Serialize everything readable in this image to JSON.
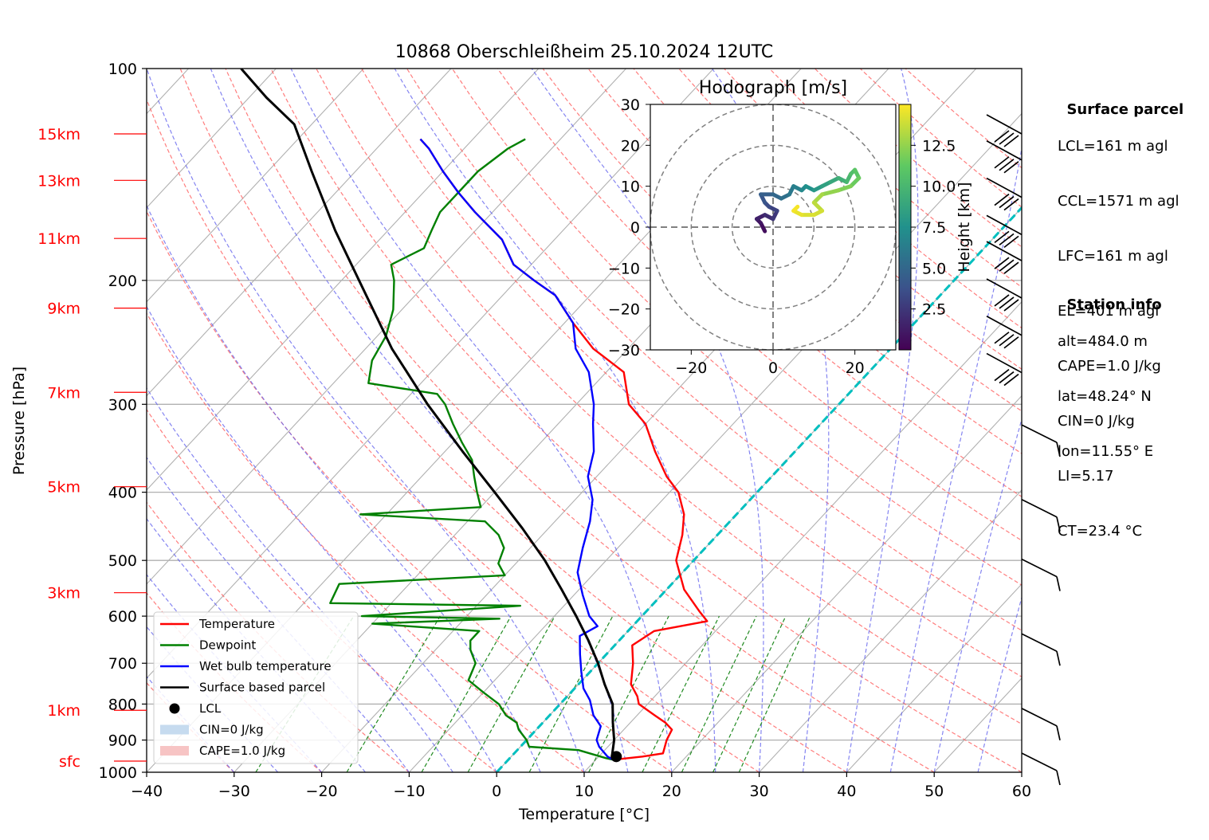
{
  "chart_data": {
    "type": "line",
    "title": "10868 Oberschleißheim 25.10.2024 12UTC",
    "xlabel": "Temperature [°C]",
    "ylabel": "Pressure [hPa]",
    "xlim": [
      -40,
      60
    ],
    "ylim": [
      1000,
      100
    ],
    "y_scale": "log",
    "skew": "skew-T log-p diagram",
    "x_ticks": [
      "−40",
      "−30",
      "−20",
      "−10",
      "0",
      "10",
      "20",
      "30",
      "40",
      "50",
      "60"
    ],
    "y_ticks": [
      {
        "p": 100,
        "label": "100"
      },
      {
        "p": 200,
        "label": "200"
      },
      {
        "p": 300,
        "label": "300"
      },
      {
        "p": 400,
        "label": "400"
      },
      {
        "p": 500,
        "label": "500"
      },
      {
        "p": 600,
        "label": "600"
      },
      {
        "p": 700,
        "label": "700"
      },
      {
        "p": 800,
        "label": "800"
      },
      {
        "p": 900,
        "label": "900"
      },
      {
        "p": 1000,
        "label": "1000"
      }
    ],
    "height_labels": [
      {
        "p": 128,
        "label": "15km"
      },
      {
        "p": 160,
        "label": "13km"
      },
      {
        "p": 200,
        "label": "11km"
      },
      {
        "p": 248,
        "label": "9km"
      },
      {
        "p": 306,
        "label": "7km"
      },
      {
        "p": 371,
        "label": "5km"
      },
      {
        "p": 444,
        "label": "3km"
      },
      {
        "p": 525,
        "label": "1km"
      },
      {
        "p": 560,
        "label": "sfc"
      }
    ],
    "series": [
      {
        "name": "Temperature",
        "color": "#ff0000",
        "points": [
          [
            12,
            960
          ],
          [
            15,
            950
          ],
          [
            17,
            940
          ],
          [
            16,
            900
          ],
          [
            15.5,
            870
          ],
          [
            14,
            850
          ],
          [
            12,
            830
          ],
          [
            9,
            800
          ],
          [
            8,
            780
          ],
          [
            6,
            750
          ],
          [
            4,
            700
          ],
          [
            2,
            660
          ],
          [
            3,
            630
          ],
          [
            8,
            610
          ],
          [
            6,
            590
          ],
          [
            2,
            550
          ],
          [
            -2,
            500
          ],
          [
            -4,
            460
          ],
          [
            -6,
            430
          ],
          [
            -9,
            400
          ],
          [
            -12,
            380
          ],
          [
            -16,
            350
          ],
          [
            -20,
            320
          ],
          [
            -24,
            300
          ],
          [
            -28,
            270
          ],
          [
            -34,
            250
          ],
          [
            -39,
            230
          ],
          [
            -44,
            210
          ],
          [
            -48,
            200
          ],
          [
            -52,
            190
          ],
          [
            -56,
            175
          ],
          [
            -62,
            160
          ],
          [
            -66,
            150
          ],
          [
            -70,
            140
          ],
          [
            -74,
            130
          ],
          [
            -76,
            126
          ]
        ]
      },
      {
        "name": "Dewpoint",
        "color": "#008000",
        "points": [
          [
            12,
            960
          ],
          [
            11,
            955
          ],
          [
            7,
            930
          ],
          [
            1,
            920
          ],
          [
            0,
            900
          ],
          [
            -2,
            870
          ],
          [
            -3,
            850
          ],
          [
            -5,
            830
          ],
          [
            -7,
            800
          ],
          [
            -10,
            770
          ],
          [
            -13,
            740
          ],
          [
            -14,
            700
          ],
          [
            -16,
            670
          ],
          [
            -17,
            650
          ],
          [
            -17,
            630
          ],
          [
            -30,
            615
          ],
          [
            -16,
            605
          ],
          [
            -32,
            600
          ],
          [
            -15,
            580
          ],
          [
            -37,
            575
          ],
          [
            -38,
            540
          ],
          [
            -20,
            525
          ],
          [
            -22,
            505
          ],
          [
            -23,
            480
          ],
          [
            -25,
            460
          ],
          [
            -28,
            440
          ],
          [
            -43,
            430
          ],
          [
            -30,
            420
          ],
          [
            -32,
            400
          ],
          [
            -34,
            380
          ],
          [
            -36,
            360
          ],
          [
            -39,
            340
          ],
          [
            -42,
            320
          ],
          [
            -45,
            300
          ],
          [
            -47,
            290
          ],
          [
            -56,
            280
          ],
          [
            -58,
            260
          ],
          [
            -59,
            240
          ],
          [
            -61,
            220
          ],
          [
            -64,
            200
          ],
          [
            -66,
            190
          ],
          [
            -64,
            180
          ],
          [
            -65,
            170
          ],
          [
            -66,
            160
          ],
          [
            -66,
            150
          ],
          [
            -66,
            140
          ],
          [
            -65,
            130
          ],
          [
            -64,
            126
          ]
        ]
      },
      {
        "name": "Wet bulb temperature",
        "color": "#0000ff",
        "points": [
          [
            12,
            960
          ],
          [
            11,
            950
          ],
          [
            9,
            920
          ],
          [
            8,
            900
          ],
          [
            7,
            860
          ],
          [
            5,
            830
          ],
          [
            3,
            790
          ],
          [
            1,
            760
          ],
          [
            -1,
            720
          ],
          [
            -3,
            680
          ],
          [
            -5,
            640
          ],
          [
            -4,
            620
          ],
          [
            -6,
            600
          ],
          [
            -9,
            560
          ],
          [
            -12,
            520
          ],
          [
            -14,
            480
          ],
          [
            -16,
            440
          ],
          [
            -18,
            410
          ],
          [
            -21,
            380
          ],
          [
            -23,
            350
          ],
          [
            -26,
            320
          ],
          [
            -28,
            300
          ],
          [
            -32,
            270
          ],
          [
            -36,
            250
          ],
          [
            -39,
            230
          ],
          [
            -44,
            210
          ],
          [
            -48,
            200
          ],
          [
            -52,
            190
          ],
          [
            -56,
            175
          ],
          [
            -62,
            160
          ],
          [
            -66,
            150
          ],
          [
            -70,
            140
          ],
          [
            -74,
            130
          ],
          [
            -76,
            126
          ]
        ]
      },
      {
        "name": "Surface based parcel",
        "color": "#000000",
        "points": [
          [
            12,
            960
          ],
          [
            11.5,
            950
          ],
          [
            10,
            900
          ],
          [
            8,
            850
          ],
          [
            6,
            800
          ],
          [
            3,
            750
          ],
          [
            0,
            700
          ],
          [
            -3.5,
            650
          ],
          [
            -7.5,
            600
          ],
          [
            -12,
            550
          ],
          [
            -17,
            500
          ],
          [
            -23,
            450
          ],
          [
            -30,
            400
          ],
          [
            -38,
            350
          ],
          [
            -47,
            300
          ],
          [
            -57,
            250
          ],
          [
            -68,
            200
          ],
          [
            -76,
            170
          ],
          [
            -85,
            140
          ],
          [
            -92,
            120
          ],
          [
            -98,
            110
          ],
          [
            -104,
            100
          ]
        ]
      }
    ],
    "lcl": {
      "name": "LCL",
      "t": 12,
      "p": 950
    },
    "legend": {
      "position": "lower-left",
      "entries": [
        {
          "label": "Temperature",
          "color": "#ff0000",
          "kind": "line"
        },
        {
          "label": "Dewpoint",
          "color": "#008000",
          "kind": "line"
        },
        {
          "label": "Wet bulb temperature",
          "color": "#0000ff",
          "kind": "line"
        },
        {
          "label": "Surface based parcel",
          "color": "#000000",
          "kind": "line"
        },
        {
          "label": "LCL",
          "color": "#000000",
          "kind": "dot"
        },
        {
          "label": "CIN=0 J/kg",
          "color": "#c6dbef",
          "kind": "patch"
        },
        {
          "label": "CAPE=1.0 J/kg",
          "color": "#f7c4c4",
          "kind": "patch"
        }
      ]
    },
    "reference_lines": {
      "zero_isotherm_color": "#00bfbf",
      "dry_adiabat_color": "#ff6666",
      "moist_adiabat_color": "#6666ee",
      "mixing_ratio_color": "#228b22",
      "isotherm_color": "#b0b0b0",
      "grid": true
    },
    "wind_barbs": {
      "position": "right",
      "levels": [
        130,
        165,
        215,
        265,
        300,
        350,
        400,
        450,
        520,
        620,
        700,
        800,
        900,
        960
      ]
    },
    "hodograph": {
      "title": "Hodograph [m/s]",
      "xlim": [
        -30,
        30
      ],
      "ylim": [
        -30,
        30
      ],
      "x_ticks": [
        "−20",
        "0",
        "20"
      ],
      "y_ticks": [
        "30",
        "20",
        "10",
        "0",
        "−10",
        "−20",
        "−30"
      ],
      "rings": [
        10,
        20,
        30
      ],
      "colorbar_label": "Height [km]",
      "colorbar_ticks": [
        "2.5",
        "5.0",
        "7.5",
        "10.0",
        "12.5"
      ],
      "colormap": "viridis",
      "points": [
        [
          -2,
          -1,
          0.2
        ],
        [
          -3,
          1,
          0.6
        ],
        [
          -4,
          2,
          1
        ],
        [
          -2,
          3,
          1.5
        ],
        [
          0,
          2,
          2
        ],
        [
          1,
          4,
          2.5
        ],
        [
          -1,
          5,
          3
        ],
        [
          -2,
          6,
          3.5
        ],
        [
          -3,
          8,
          4
        ],
        [
          0,
          8,
          4.5
        ],
        [
          2,
          7,
          5
        ],
        [
          4,
          8,
          5.5
        ],
        [
          5,
          10,
          6
        ],
        [
          7,
          9,
          6.5
        ],
        [
          8,
          10,
          7
        ],
        [
          10,
          9,
          7.5
        ],
        [
          12,
          10,
          8
        ],
        [
          14,
          11,
          8.5
        ],
        [
          16,
          12,
          9
        ],
        [
          18,
          11,
          9.5
        ],
        [
          19,
          13,
          10
        ],
        [
          20,
          14,
          10.5
        ],
        [
          21,
          12,
          11
        ],
        [
          19,
          10,
          11.5
        ],
        [
          16,
          9,
          12
        ],
        [
          12,
          8,
          12.5
        ],
        [
          10,
          6,
          13
        ],
        [
          12,
          4,
          13.5
        ],
        [
          10,
          3,
          14
        ],
        [
          7,
          3,
          14.2
        ],
        [
          5,
          4,
          14.5
        ],
        [
          6,
          5,
          14.8
        ]
      ]
    }
  },
  "info": {
    "surface_title": "Surface parcel",
    "surface_lines": [
      "LCL=161 m agl",
      "CCL=1571 m agl",
      "LFC=161 m agl",
      "EL=401 m agl",
      "CAPE=1.0 J/kg",
      "CIN=0 J/kg",
      "LI=5.17",
      "CT=23.4 °C"
    ],
    "station_title": "Station info",
    "station_lines": [
      "alt=484.0 m",
      "lat=48.24° N",
      "lon=11.55° E"
    ]
  }
}
